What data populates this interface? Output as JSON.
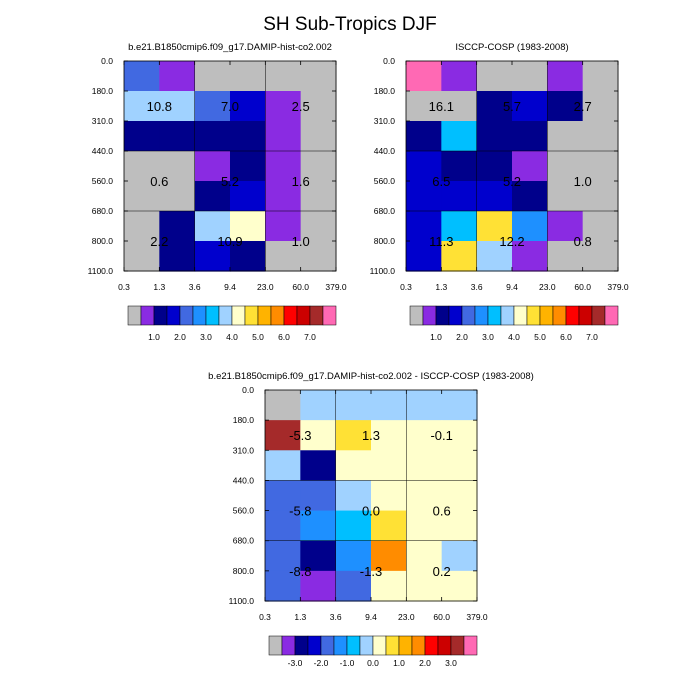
{
  "title": "SH Sub-Tropics DJF",
  "axes": {
    "x_ticks": [
      "0.3",
      "1.3",
      "3.6",
      "9.4",
      "23.0",
      "60.0",
      "379.0"
    ],
    "y_ticks": [
      "0.0",
      "180.0",
      "310.0",
      "440.0",
      "560.0",
      "680.0",
      "800.0",
      "1100.0"
    ]
  },
  "colors": {
    "missing": "#BEBEBE",
    "abs_palette": [
      "#BEBEBE",
      "#8A2BE2",
      "#00008B",
      "#0000CD",
      "#4169E1",
      "#1E90FF",
      "#00BFFF",
      "#A0D2FF",
      "#FFFFCC",
      "#FFE135",
      "#FFB300",
      "#FF8C00",
      "#FF0000",
      "#CC0000",
      "#A52A2A",
      "#FF69B4"
    ],
    "diff_palette": [
      "#BEBEBE",
      "#8A2BE2",
      "#00008B",
      "#0000CD",
      "#4169E1",
      "#1E90FF",
      "#00BFFF",
      "#A0D2FF",
      "#FFFFCC",
      "#FFE135",
      "#FFB300",
      "#FF8C00",
      "#FF0000",
      "#CC0000",
      "#A52A2A",
      "#FF69B4"
    ]
  },
  "chart_data": [
    {
      "type": "heatmap",
      "title": "b.e21.B1850cmip6.f09_g17.DAMIP-hist-co2.002",
      "colorbar_labels": [
        "1.0",
        "2.0",
        "3.0",
        "4.0",
        "5.0",
        "6.0",
        "7.0"
      ],
      "cells": [
        [
          4,
          1,
          0,
          0,
          0,
          0
        ],
        [
          7,
          7,
          4,
          3,
          1,
          0
        ],
        [
          2,
          2,
          2,
          2,
          1,
          0
        ],
        [
          0,
          0,
          1,
          2,
          1,
          0
        ],
        [
          0,
          0,
          2,
          3,
          1,
          0
        ],
        [
          0,
          2,
          7,
          8,
          1,
          0
        ],
        [
          0,
          2,
          3,
          2,
          0,
          0
        ]
      ],
      "annotations": [
        {
          "col": 1.0,
          "row": 1.5,
          "text": "10.8"
        },
        {
          "col": 3.0,
          "row": 1.5,
          "text": "7.0"
        },
        {
          "col": 5.0,
          "row": 1.5,
          "text": "2.5"
        },
        {
          "col": 1.0,
          "row": 4.0,
          "text": "0.6"
        },
        {
          "col": 3.0,
          "row": 4.0,
          "text": "5.2"
        },
        {
          "col": 5.0,
          "row": 4.0,
          "text": "1.6"
        },
        {
          "col": 1.0,
          "row": 6.0,
          "text": "2.2"
        },
        {
          "col": 3.0,
          "row": 6.0,
          "text": "10.9"
        },
        {
          "col": 5.0,
          "row": 6.0,
          "text": "1.0"
        }
      ]
    },
    {
      "type": "heatmap",
      "title": "ISCCP-COSP (1983-2008)",
      "colorbar_labels": [
        "1.0",
        "2.0",
        "3.0",
        "4.0",
        "5.0",
        "6.0",
        "7.0"
      ],
      "cells": [
        [
          15,
          1,
          0,
          0,
          1,
          0
        ],
        [
          0,
          0,
          2,
          3,
          2,
          0
        ],
        [
          2,
          6,
          2,
          2,
          0,
          0
        ],
        [
          3,
          2,
          2,
          1,
          0,
          0
        ],
        [
          3,
          3,
          3,
          2,
          0,
          0
        ],
        [
          3,
          6,
          9,
          5,
          1,
          0
        ],
        [
          3,
          9,
          7,
          1,
          0,
          0
        ]
      ],
      "annotations": [
        {
          "col": 1.0,
          "row": 1.5,
          "text": "16.1"
        },
        {
          "col": 3.0,
          "row": 1.5,
          "text": "5.7"
        },
        {
          "col": 5.0,
          "row": 1.5,
          "text": "2.7"
        },
        {
          "col": 1.0,
          "row": 4.0,
          "text": "6.5"
        },
        {
          "col": 3.0,
          "row": 4.0,
          "text": "5.2"
        },
        {
          "col": 5.0,
          "row": 4.0,
          "text": "1.0"
        },
        {
          "col": 1.0,
          "row": 6.0,
          "text": "11.3"
        },
        {
          "col": 3.0,
          "row": 6.0,
          "text": "12.2"
        },
        {
          "col": 5.0,
          "row": 6.0,
          "text": "0.8"
        }
      ]
    },
    {
      "type": "heatmap",
      "title": "b.e21.B1850cmip6.f09_g17.DAMIP-hist-co2.002 - ISCCP-COSP (1983-2008)",
      "colorbar_labels": [
        "-3.0",
        "-2.0",
        "-1.0",
        "0.0",
        "1.0",
        "2.0",
        "3.0"
      ],
      "cells": [
        [
          0,
          7,
          7,
          7,
          7,
          7
        ],
        [
          14,
          8,
          9,
          8,
          8,
          8
        ],
        [
          7,
          2,
          8,
          8,
          8,
          8
        ],
        [
          4,
          4,
          7,
          8,
          8,
          8
        ],
        [
          4,
          5,
          6,
          9,
          8,
          8
        ],
        [
          4,
          2,
          5,
          11,
          8,
          7
        ],
        [
          4,
          1,
          4,
          8,
          8,
          8
        ]
      ],
      "annotations": [
        {
          "col": 1.0,
          "row": 1.5,
          "text": "-5.3"
        },
        {
          "col": 3.0,
          "row": 1.5,
          "text": "1.3"
        },
        {
          "col": 5.0,
          "row": 1.5,
          "text": "-0.1"
        },
        {
          "col": 1.0,
          "row": 4.0,
          "text": "-5.8"
        },
        {
          "col": 3.0,
          "row": 4.0,
          "text": "0.0"
        },
        {
          "col": 5.0,
          "row": 4.0,
          "text": "0.6"
        },
        {
          "col": 1.0,
          "row": 6.0,
          "text": "-8.8"
        },
        {
          "col": 3.0,
          "row": 6.0,
          "text": "-1.3"
        },
        {
          "col": 5.0,
          "row": 6.0,
          "text": "0.2"
        }
      ]
    }
  ]
}
